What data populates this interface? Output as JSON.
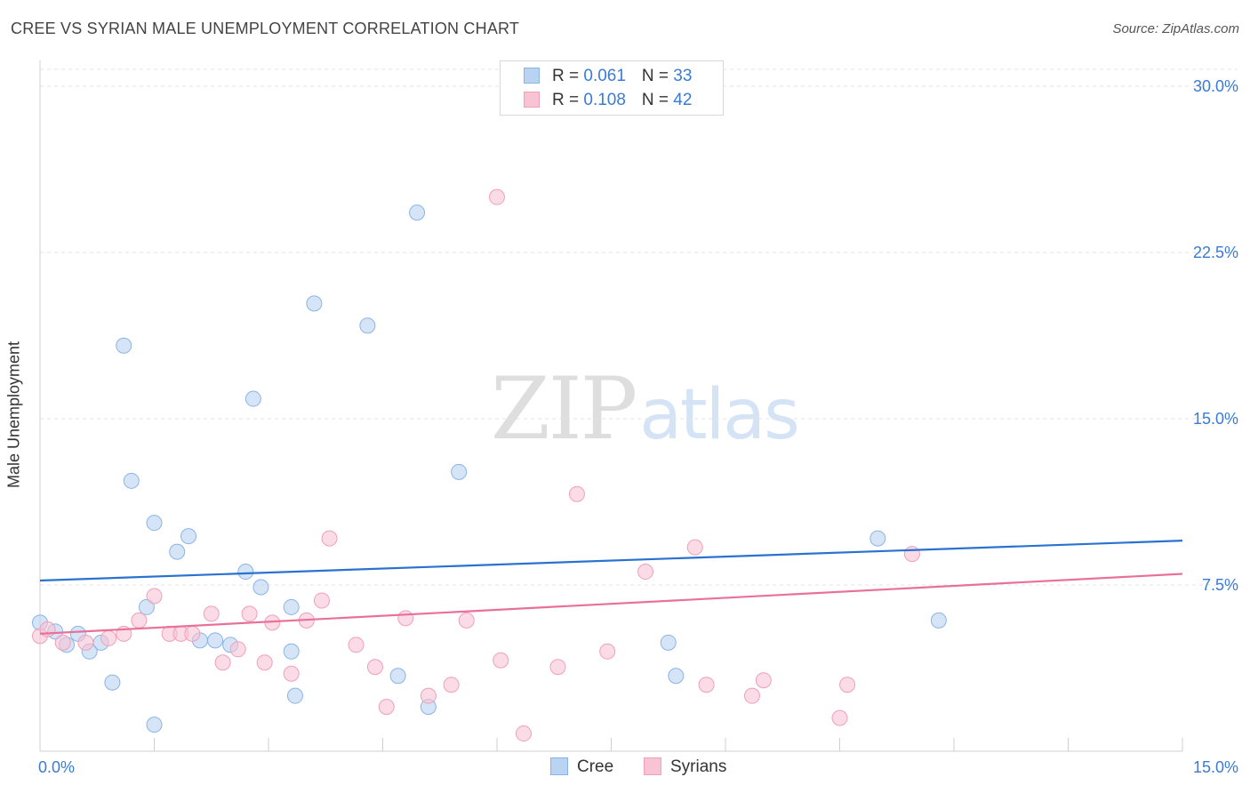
{
  "title": "CREE VS SYRIAN MALE UNEMPLOYMENT CORRELATION CHART",
  "source": "Source: ZipAtlas.com",
  "watermark": {
    "zip": "ZIP",
    "atlas": "atlas"
  },
  "legend": {
    "rows": [
      {
        "r_label": "R = ",
        "r_value": "0.061",
        "n_label": "N = ",
        "n_value": "33"
      },
      {
        "r_label": "R = ",
        "r_value": "0.108",
        "n_label": "N = ",
        "n_value": "42"
      }
    ]
  },
  "colors": {
    "cree_fill": "#b9d3f2",
    "cree_stroke": "#8ab4e6",
    "cree_line": "#2a72d0",
    "syr_fill": "#f8c3d3",
    "syr_stroke": "#f0a0ba",
    "syr_line": "#e8719a",
    "axis_text": "#3a7bd5",
    "grid": "#e3e3e3"
  },
  "chart_data": {
    "type": "scatter",
    "title": "CREE VS SYRIAN MALE UNEMPLOYMENT CORRELATION CHART",
    "xlabel": "",
    "ylabel": "Male Unemployment",
    "xlim": [
      0,
      15
    ],
    "ylim": [
      0,
      30
    ],
    "x_tick_labels": [
      "0.0%",
      "15.0%"
    ],
    "y_ticks": [
      7.5,
      15.0,
      22.5,
      30.0
    ],
    "y_tick_labels": [
      "7.5%",
      "15.0%",
      "22.5%",
      "30.0%"
    ],
    "grid": true,
    "legend_position": "top-center",
    "series": [
      {
        "name": "Cree",
        "r": 0.061,
        "n": 33,
        "trend": [
          [
            0,
            7.7
          ],
          [
            15,
            9.5
          ]
        ],
        "points": [
          [
            0.0,
            5.8
          ],
          [
            0.2,
            5.4
          ],
          [
            0.35,
            4.8
          ],
          [
            0.5,
            5.3
          ],
          [
            0.65,
            4.5
          ],
          [
            0.8,
            4.9
          ],
          [
            0.95,
            3.1
          ],
          [
            1.1,
            18.3
          ],
          [
            1.2,
            12.2
          ],
          [
            1.4,
            6.5
          ],
          [
            1.5,
            10.3
          ],
          [
            1.5,
            1.2
          ],
          [
            1.8,
            9.0
          ],
          [
            1.95,
            9.7
          ],
          [
            2.1,
            5.0
          ],
          [
            2.3,
            5.0
          ],
          [
            2.5,
            4.8
          ],
          [
            2.7,
            8.1
          ],
          [
            2.8,
            15.9
          ],
          [
            2.9,
            7.4
          ],
          [
            3.3,
            4.5
          ],
          [
            3.3,
            6.5
          ],
          [
            3.35,
            2.5
          ],
          [
            3.6,
            20.2
          ],
          [
            4.3,
            19.2
          ],
          [
            4.7,
            3.4
          ],
          [
            4.95,
            24.3
          ],
          [
            5.1,
            2.0
          ],
          [
            5.5,
            12.6
          ],
          [
            8.25,
            4.9
          ],
          [
            8.35,
            3.4
          ],
          [
            11.0,
            9.6
          ],
          [
            11.8,
            5.9
          ]
        ]
      },
      {
        "name": "Syrians",
        "r": 0.108,
        "n": 42,
        "trend": [
          [
            0,
            5.3
          ],
          [
            15,
            8.0
          ]
        ],
        "points": [
          [
            0.0,
            5.2
          ],
          [
            0.1,
            5.5
          ],
          [
            0.3,
            4.9
          ],
          [
            0.6,
            4.9
          ],
          [
            0.9,
            5.1
          ],
          [
            1.1,
            5.3
          ],
          [
            1.3,
            5.9
          ],
          [
            1.5,
            7.0
          ],
          [
            1.7,
            5.3
          ],
          [
            1.85,
            5.3
          ],
          [
            2.0,
            5.3
          ],
          [
            2.25,
            6.2
          ],
          [
            2.4,
            4.0
          ],
          [
            2.6,
            4.6
          ],
          [
            2.75,
            6.2
          ],
          [
            2.95,
            4.0
          ],
          [
            3.05,
            5.8
          ],
          [
            3.3,
            3.5
          ],
          [
            3.5,
            5.9
          ],
          [
            3.7,
            6.8
          ],
          [
            3.8,
            9.6
          ],
          [
            4.15,
            4.8
          ],
          [
            4.4,
            3.8
          ],
          [
            4.55,
            2.0
          ],
          [
            4.8,
            6.0
          ],
          [
            5.1,
            2.5
          ],
          [
            5.4,
            3.0
          ],
          [
            5.6,
            5.9
          ],
          [
            6.0,
            25.0
          ],
          [
            6.05,
            4.1
          ],
          [
            6.35,
            0.8
          ],
          [
            6.8,
            3.8
          ],
          [
            7.05,
            11.6
          ],
          [
            7.45,
            4.5
          ],
          [
            7.95,
            8.1
          ],
          [
            8.6,
            9.2
          ],
          [
            8.75,
            3.0
          ],
          [
            9.35,
            2.5
          ],
          [
            9.5,
            3.2
          ],
          [
            10.5,
            1.5
          ],
          [
            10.6,
            3.0
          ],
          [
            11.45,
            8.9
          ]
        ]
      }
    ]
  },
  "bottom_legend": [
    "Cree",
    "Syrians"
  ]
}
